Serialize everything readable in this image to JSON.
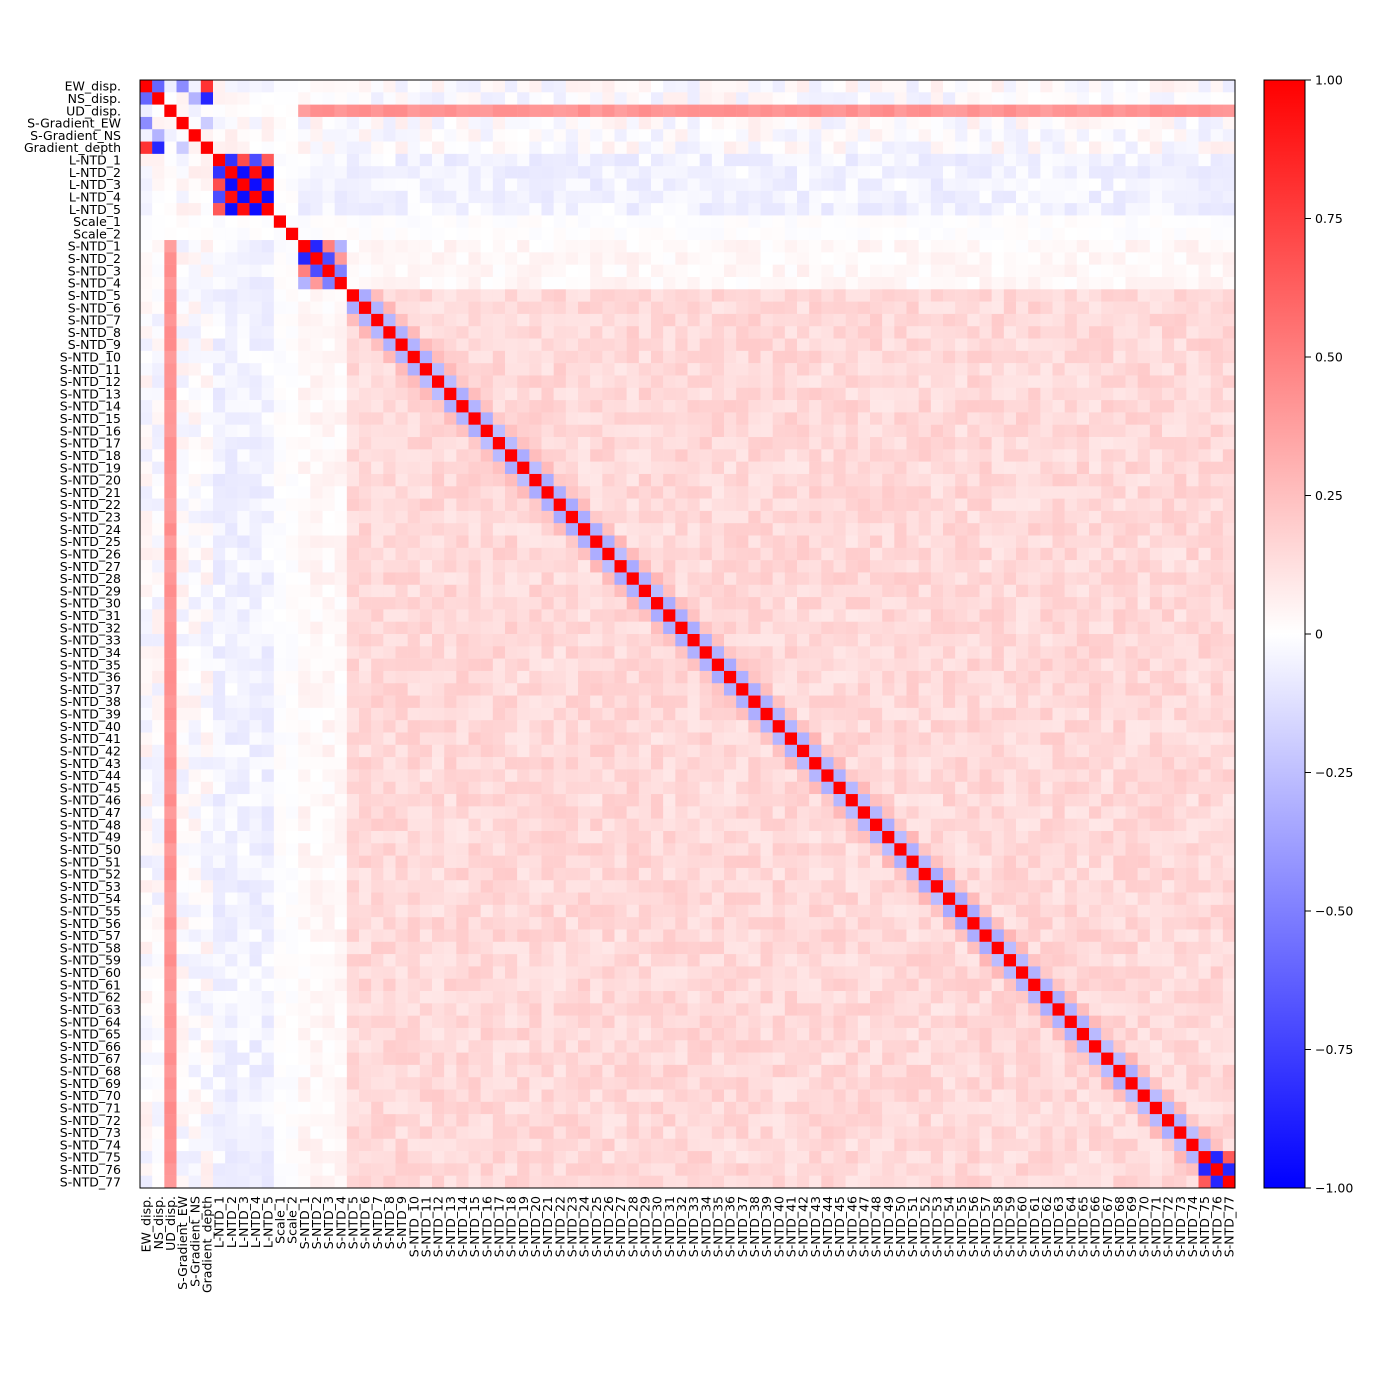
{
  "chart_data": {
    "type": "heatmap",
    "title": "",
    "xlabel": "",
    "ylabel": "",
    "variables": [
      "EW_disp.",
      "NS_disp.",
      "UD_disp.",
      "S-Gradient_EW",
      "S-Gradient_NS",
      "Gradient_depth",
      "L-NTD_1",
      "L-NTD_2",
      "L-NTD_3",
      "L-NTD_4",
      "L-NTD_5",
      "Scale_1",
      "Scale_2",
      "S-NTD_1",
      "S-NTD_2",
      "S-NTD_3",
      "S-NTD_4",
      "S-NTD_5",
      "S-NTD_6",
      "S-NTD_7",
      "S-NTD_8",
      "S-NTD_9",
      "S-NTD_10",
      "S-NTD_11",
      "S-NTD_12",
      "S-NTD_13",
      "S-NTD_14",
      "S-NTD_15",
      "S-NTD_16",
      "S-NTD_17",
      "S-NTD_18",
      "S-NTD_19",
      "S-NTD_20",
      "S-NTD_21",
      "S-NTD_22",
      "S-NTD_23",
      "S-NTD_24",
      "S-NTD_25",
      "S-NTD_26",
      "S-NTD_27",
      "S-NTD_28",
      "S-NTD_29",
      "S-NTD_30",
      "S-NTD_31",
      "S-NTD_32",
      "S-NTD_33",
      "S-NTD_34",
      "S-NTD_35",
      "S-NTD_36",
      "S-NTD_37",
      "S-NTD_38",
      "S-NTD_39",
      "S-NTD_40",
      "S-NTD_41",
      "S-NTD_42",
      "S-NTD_43",
      "S-NTD_44",
      "S-NTD_45",
      "S-NTD_46",
      "S-NTD_47",
      "S-NTD_48",
      "S-NTD_49",
      "S-NTD_50",
      "S-NTD_51",
      "S-NTD_52",
      "S-NTD_53",
      "S-NTD_54",
      "S-NTD_55",
      "S-NTD_56",
      "S-NTD_57",
      "S-NTD_58",
      "S-NTD_59",
      "S-NTD_60",
      "S-NTD_61",
      "S-NTD_62",
      "S-NTD_63",
      "S-NTD_64",
      "S-NTD_65",
      "S-NTD_66",
      "S-NTD_67",
      "S-NTD_68",
      "S-NTD_69",
      "S-NTD_70",
      "S-NTD_71",
      "S-NTD_72",
      "S-NTD_73",
      "S-NTD_74",
      "S-NTD_75",
      "S-NTD_76",
      "S-NTD_77"
    ],
    "value_range": [
      -1.0,
      1.0
    ],
    "colorbar": {
      "ticks": [
        1.0,
        0.75,
        0.5,
        0.25,
        0,
        -0.25,
        -0.5,
        -0.75,
        -1.0
      ],
      "tick_labels": [
        "1.00",
        "0.75",
        "0.50",
        "0.25",
        "0",
        "−0.25",
        "−0.50",
        "−0.75",
        "−1.00"
      ],
      "colors": {
        "negative": "#0000ff",
        "zero": "#ffffff",
        "positive": "#ff0000"
      }
    },
    "diagonal_value": 1.0,
    "pairs": [
      {
        "a": "EW_disp.",
        "b": "NS_disp.",
        "value": -0.6
      },
      {
        "a": "EW_disp.",
        "b": "S-Gradient_EW",
        "value": -0.45
      },
      {
        "a": "EW_disp.",
        "b": "Gradient_depth",
        "value": 0.8
      },
      {
        "a": "NS_disp.",
        "b": "S-Gradient_EW",
        "value": 0.05
      },
      {
        "a": "NS_disp.",
        "b": "S-Gradient_NS",
        "value": -0.3
      },
      {
        "a": "NS_disp.",
        "b": "Gradient_depth",
        "value": -0.85
      },
      {
        "a": "S-Gradient_EW",
        "b": "Gradient_depth",
        "value": -0.2
      },
      {
        "a": "S-Gradient_NS",
        "b": "Gradient_depth",
        "value": 0.05
      },
      {
        "a": "L-NTD_1",
        "b": "L-NTD_2",
        "value": -0.8
      },
      {
        "a": "L-NTD_1",
        "b": "L-NTD_3",
        "value": 0.7
      },
      {
        "a": "L-NTD_1",
        "b": "L-NTD_4",
        "value": -0.7
      },
      {
        "a": "L-NTD_1",
        "b": "L-NTD_5",
        "value": 0.65
      },
      {
        "a": "L-NTD_2",
        "b": "L-NTD_3",
        "value": -0.95
      },
      {
        "a": "L-NTD_2",
        "b": "L-NTD_4",
        "value": 0.95
      },
      {
        "a": "L-NTD_2",
        "b": "L-NTD_5",
        "value": -0.95
      },
      {
        "a": "L-NTD_3",
        "b": "L-NTD_4",
        "value": -0.95
      },
      {
        "a": "L-NTD_3",
        "b": "L-NTD_5",
        "value": 0.95
      },
      {
        "a": "L-NTD_4",
        "b": "L-NTD_5",
        "value": -0.95
      },
      {
        "a": "S-NTD_1",
        "b": "S-NTD_2",
        "value": -0.85
      },
      {
        "a": "S-NTD_1",
        "b": "S-NTD_3",
        "value": 0.5
      },
      {
        "a": "S-NTD_1",
        "b": "S-NTD_4",
        "value": -0.3
      },
      {
        "a": "S-NTD_2",
        "b": "S-NTD_3",
        "value": -0.7
      },
      {
        "a": "S-NTD_2",
        "b": "S-NTD_4",
        "value": 0.4
      },
      {
        "a": "S-NTD_3",
        "b": "S-NTD_4",
        "value": -0.5
      },
      {
        "a": "S-NTD_75",
        "b": "S-NTD_76",
        "value": -0.85
      },
      {
        "a": "S-NTD_75",
        "b": "S-NTD_77",
        "value": 0.65
      },
      {
        "a": "S-NTD_76",
        "b": "S-NTD_77",
        "value": -0.85
      }
    ],
    "patterns": {
      "adjacent_S-NTD": -0.3,
      "second_neighbor_S-NTD": 0.25,
      "S-NTD_block_typical": 0.15,
      "UD_disp._vs_S-NTD": 0.42,
      "L-NTD_vs_S-NTD": -0.05,
      "Scale_vs_others": 0.0
    }
  }
}
